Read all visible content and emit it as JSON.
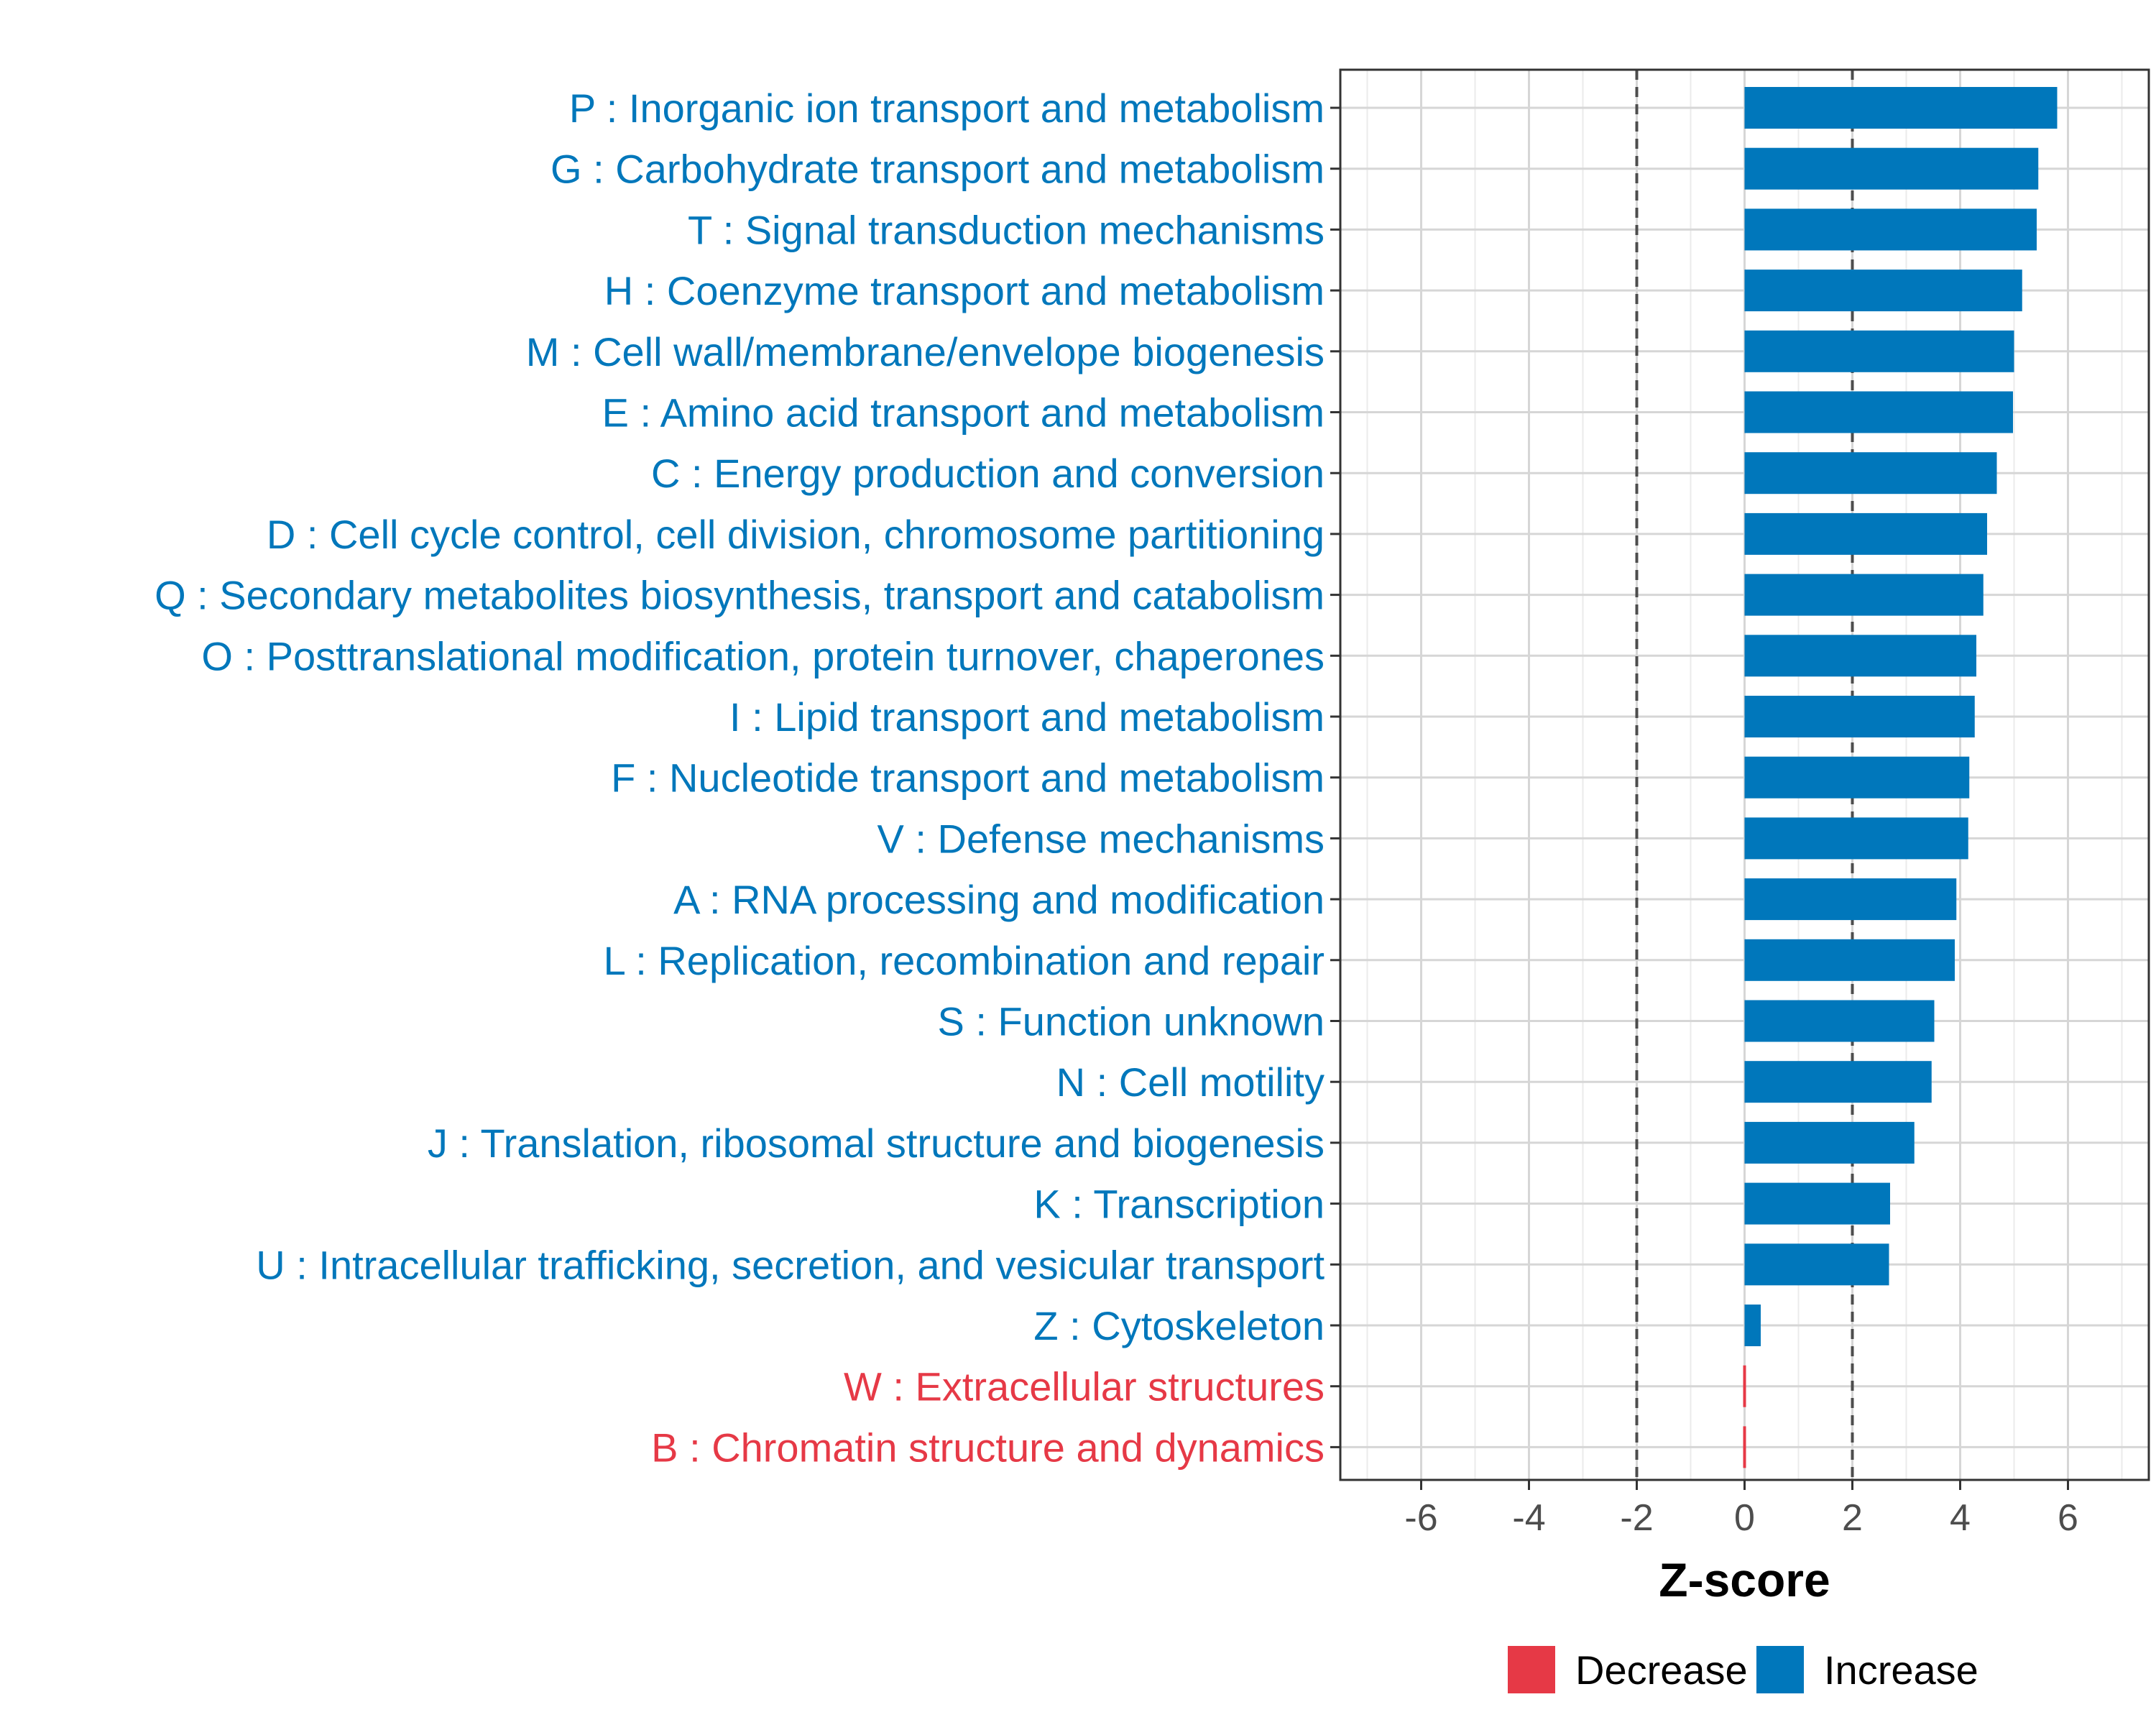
{
  "chart_data": {
    "type": "bar",
    "orientation": "horizontal",
    "title": "",
    "xlabel": "Z-score",
    "ylabel": "",
    "xlim": [
      -7.5,
      7.5
    ],
    "xticks": [
      -6,
      -4,
      -2,
      0,
      2,
      4,
      6
    ],
    "xtick_labels": [
      "-6",
      "-4",
      "-2",
      "0",
      "2",
      "4",
      "6"
    ],
    "reference_lines": [
      -2,
      2
    ],
    "grid": true,
    "colors": {
      "Increase": "#0077bb",
      "Decrease": "#e63946"
    },
    "categories": [
      "P : Inorganic ion transport and metabolism",
      "G : Carbohydrate transport and metabolism",
      "T : Signal transduction mechanisms",
      "H : Coenzyme transport and metabolism",
      "M : Cell wall/membrane/envelope biogenesis",
      "E : Amino acid transport and metabolism",
      "C : Energy production and conversion",
      "D : Cell cycle control, cell division, chromosome partitioning",
      "Q : Secondary metabolites biosynthesis, transport and catabolism",
      "O : Posttranslational modification, protein turnover, chaperones",
      "I : Lipid transport and metabolism",
      "F : Nucleotide transport and metabolism",
      "V : Defense mechanisms",
      "A : RNA processing and modification",
      "L : Replication, recombination and repair",
      "S : Function unknown",
      "N : Cell motility",
      "J : Translation, ribosomal structure and biogenesis",
      "K : Transcription",
      "U : Intracellular trafficking, secretion, and vesicular transport",
      "Z : Cytoskeleton",
      "W : Extracellular structures",
      "B : Chromatin structure and dynamics"
    ],
    "values": [
      5.8,
      5.45,
      5.42,
      5.15,
      5.0,
      4.98,
      4.68,
      4.5,
      4.43,
      4.3,
      4.27,
      4.17,
      4.15,
      3.93,
      3.9,
      3.52,
      3.47,
      3.15,
      2.7,
      2.68,
      0.3,
      -0.04,
      -0.04
    ],
    "directions": [
      "Increase",
      "Increase",
      "Increase",
      "Increase",
      "Increase",
      "Increase",
      "Increase",
      "Increase",
      "Increase",
      "Increase",
      "Increase",
      "Increase",
      "Increase",
      "Increase",
      "Increase",
      "Increase",
      "Increase",
      "Increase",
      "Increase",
      "Increase",
      "Increase",
      "Decrease",
      "Decrease"
    ],
    "legend": {
      "placement": "bottom",
      "entries": [
        "Decrease",
        "Increase"
      ]
    }
  }
}
